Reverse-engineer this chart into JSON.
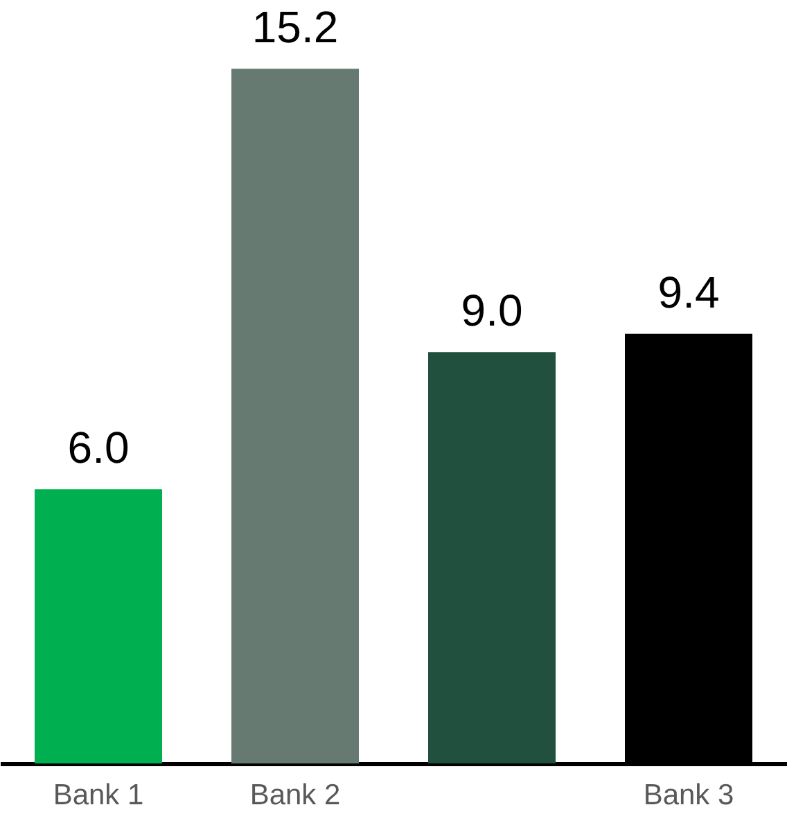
{
  "chart_data": {
    "type": "bar",
    "categories": [
      "Bank 1",
      "Bank 2",
      null,
      "Bank 3"
    ],
    "values": [
      6.0,
      15.2,
      9.0,
      9.4
    ],
    "colors": [
      "#00b050",
      "#667a72",
      "#22503e",
      "#000000"
    ],
    "value_labels": [
      "6.0",
      "15.2",
      "9.0",
      "9.4"
    ]
  }
}
